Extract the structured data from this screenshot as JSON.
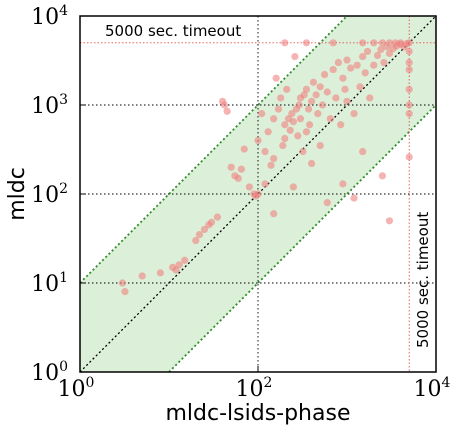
{
  "chart_data": {
    "type": "scatter",
    "xlabel": "mldc-lsids-phase",
    "ylabel": "mldc",
    "xscale": "log10",
    "yscale": "log10",
    "xlim": [
      1,
      10000
    ],
    "ylim": [
      1,
      10000
    ],
    "x_ticks": [
      {
        "base": "10",
        "exp": "0",
        "value": 1
      },
      {
        "base": "10",
        "exp": "2",
        "value": 100
      },
      {
        "base": "10",
        "exp": "4",
        "value": 10000
      }
    ],
    "y_ticks": [
      {
        "base": "10",
        "exp": "0",
        "value": 1
      },
      {
        "base": "10",
        "exp": "1",
        "value": 10
      },
      {
        "base": "10",
        "exp": "2",
        "value": 100
      },
      {
        "base": "10",
        "exp": "3",
        "value": 1000
      },
      {
        "base": "10",
        "exp": "4",
        "value": 10000
      }
    ],
    "grid": "dotted at decades",
    "band": "within 10x of diagonal",
    "timeout": 5000,
    "timeout_label": "5000 sec. timeout",
    "timeout_label_vertical": "5000 sec. timeout",
    "colors": {
      "points": "#f08080",
      "band_fill": "#dcefd8",
      "band_line": "#2e8b2e",
      "timeout_line": "#e05050",
      "grid": "#000000"
    },
    "points": [
      {
        "x": 3,
        "y": 10
      },
      {
        "x": 3.2,
        "y": 8
      },
      {
        "x": 5,
        "y": 12
      },
      {
        "x": 8,
        "y": 13
      },
      {
        "x": 11,
        "y": 15
      },
      {
        "x": 12,
        "y": 14
      },
      {
        "x": 13,
        "y": 16
      },
      {
        "x": 15,
        "y": 18
      },
      {
        "x": 20,
        "y": 30
      },
      {
        "x": 22,
        "y": 35
      },
      {
        "x": 25,
        "y": 40
      },
      {
        "x": 28,
        "y": 45
      },
      {
        "x": 30,
        "y": 48
      },
      {
        "x": 35,
        "y": 55
      },
      {
        "x": 40,
        "y": 1100
      },
      {
        "x": 42,
        "y": 1000
      },
      {
        "x": 45,
        "y": 850
      },
      {
        "x": 50,
        "y": 200
      },
      {
        "x": 55,
        "y": 160
      },
      {
        "x": 60,
        "y": 150
      },
      {
        "x": 65,
        "y": 190
      },
      {
        "x": 70,
        "y": 320
      },
      {
        "x": 80,
        "y": 120
      },
      {
        "x": 90,
        "y": 100
      },
      {
        "x": 95,
        "y": 95
      },
      {
        "x": 100,
        "y": 100
      },
      {
        "x": 100,
        "y": 400
      },
      {
        "x": 110,
        "y": 800
      },
      {
        "x": 120,
        "y": 130
      },
      {
        "x": 120,
        "y": 300
      },
      {
        "x": 130,
        "y": 500
      },
      {
        "x": 140,
        "y": 210
      },
      {
        "x": 150,
        "y": 250
      },
      {
        "x": 150,
        "y": 700
      },
      {
        "x": 160,
        "y": 2000
      },
      {
        "x": 170,
        "y": 900
      },
      {
        "x": 180,
        "y": 1200
      },
      {
        "x": 190,
        "y": 350
      },
      {
        "x": 200,
        "y": 420
      },
      {
        "x": 200,
        "y": 600
      },
      {
        "x": 210,
        "y": 1500
      },
      {
        "x": 220,
        "y": 700
      },
      {
        "x": 230,
        "y": 520
      },
      {
        "x": 240,
        "y": 800
      },
      {
        "x": 250,
        "y": 650
      },
      {
        "x": 260,
        "y": 3500
      },
      {
        "x": 270,
        "y": 900
      },
      {
        "x": 280,
        "y": 450
      },
      {
        "x": 290,
        "y": 1000
      },
      {
        "x": 300,
        "y": 700
      },
      {
        "x": 300,
        "y": 1200
      },
      {
        "x": 320,
        "y": 300
      },
      {
        "x": 330,
        "y": 1300
      },
      {
        "x": 350,
        "y": 500
      },
      {
        "x": 350,
        "y": 1500
      },
      {
        "x": 370,
        "y": 900
      },
      {
        "x": 380,
        "y": 600
      },
      {
        "x": 400,
        "y": 1100
      },
      {
        "x": 400,
        "y": 220
      },
      {
        "x": 420,
        "y": 1800
      },
      {
        "x": 450,
        "y": 1300
      },
      {
        "x": 470,
        "y": 800
      },
      {
        "x": 500,
        "y": 1600
      },
      {
        "x": 500,
        "y": 350
      },
      {
        "x": 530,
        "y": 1000
      },
      {
        "x": 560,
        "y": 2200
      },
      {
        "x": 600,
        "y": 1400
      },
      {
        "x": 650,
        "y": 700
      },
      {
        "x": 700,
        "y": 2500
      },
      {
        "x": 750,
        "y": 1200
      },
      {
        "x": 800,
        "y": 3000
      },
      {
        "x": 850,
        "y": 600
      },
      {
        "x": 900,
        "y": 2000
      },
      {
        "x": 950,
        "y": 1500
      },
      {
        "x": 1000,
        "y": 1100
      },
      {
        "x": 1000,
        "y": 3200
      },
      {
        "x": 1100,
        "y": 2600
      },
      {
        "x": 1200,
        "y": 800
      },
      {
        "x": 1300,
        "y": 2800
      },
      {
        "x": 1400,
        "y": 1600
      },
      {
        "x": 1500,
        "y": 3500
      },
      {
        "x": 1600,
        "y": 2300
      },
      {
        "x": 1700,
        "y": 4000
      },
      {
        "x": 1800,
        "y": 1200
      },
      {
        "x": 2000,
        "y": 2800
      },
      {
        "x": 2200,
        "y": 3600
      },
      {
        "x": 2400,
        "y": 4200
      },
      {
        "x": 2600,
        "y": 3000
      },
      {
        "x": 2800,
        "y": 4500
      },
      {
        "x": 3000,
        "y": 3800
      },
      {
        "x": 3300,
        "y": 4300
      },
      {
        "x": 3600,
        "y": 4600
      },
      {
        "x": 4000,
        "y": 4800
      },
      {
        "x": 4400,
        "y": 4500
      },
      {
        "x": 4700,
        "y": 4900
      },
      {
        "x": 200,
        "y": 5000
      },
      {
        "x": 350,
        "y": 5000
      },
      {
        "x": 700,
        "y": 5000
      },
      {
        "x": 1500,
        "y": 5000
      },
      {
        "x": 2000,
        "y": 5000
      },
      {
        "x": 2500,
        "y": 5000
      },
      {
        "x": 3000,
        "y": 5000
      },
      {
        "x": 3500,
        "y": 5000
      },
      {
        "x": 4000,
        "y": 5000
      },
      {
        "x": 5000,
        "y": 5000
      },
      {
        "x": 5000,
        "y": 4000
      },
      {
        "x": 5000,
        "y": 3000
      },
      {
        "x": 5000,
        "y": 2500
      },
      {
        "x": 5000,
        "y": 1500
      },
      {
        "x": 5000,
        "y": 1000
      },
      {
        "x": 5000,
        "y": 800
      },
      {
        "x": 5000,
        "y": 260
      },
      {
        "x": 1500,
        "y": 300
      },
      {
        "x": 2500,
        "y": 160
      },
      {
        "x": 3000,
        "y": 50
      },
      {
        "x": 600,
        "y": 80
      },
      {
        "x": 900,
        "y": 130
      },
      {
        "x": 1200,
        "y": 90
      },
      {
        "x": 250,
        "y": 120
      },
      {
        "x": 150,
        "y": 60
      }
    ]
  }
}
